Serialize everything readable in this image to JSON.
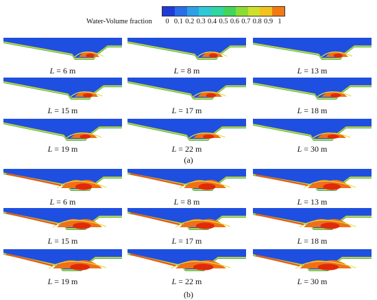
{
  "legend": {
    "title": "Water-Volume fraction",
    "ticks": [
      "0",
      "0.1",
      "0.2",
      "0.3",
      "0.4",
      "0.5",
      "0.6",
      "0.7",
      "0.8",
      "0.9",
      "1"
    ],
    "colors": [
      "#1f3bd6",
      "#2a6ee8",
      "#2ea0e8",
      "#2ec8d8",
      "#2ed6a0",
      "#3fd65a",
      "#8bdc32",
      "#cfe02a",
      "#f2c21e",
      "#f27a12",
      "#e62a0a"
    ]
  },
  "groups": [
    {
      "label": "(a)",
      "panels": [
        {
          "L": "L",
          "eq": " = 6 m"
        },
        {
          "L": "L",
          "eq": " = 8 m"
        },
        {
          "L": "L",
          "eq": " = 13 m"
        },
        {
          "L": "L",
          "eq": " = 15 m"
        },
        {
          "L": "L",
          "eq": " = 17 m"
        },
        {
          "L": "L",
          "eq": " = 18 m"
        },
        {
          "L": "L",
          "eq": " = 19 m"
        },
        {
          "L": "L",
          "eq": " = 22 m"
        },
        {
          "L": "L",
          "eq": " = 30 m"
        }
      ]
    },
    {
      "label": "(b)",
      "panels": [
        {
          "L": "L",
          "eq": " = 6 m"
        },
        {
          "L": "L",
          "eq": " = 8 m"
        },
        {
          "L": "L",
          "eq": " = 13 m"
        },
        {
          "L": "L",
          "eq": " = 15 m"
        },
        {
          "L": "L",
          "eq": " = 17 m"
        },
        {
          "L": "L",
          "eq": " = 18 m"
        },
        {
          "L": "L",
          "eq": " = 19 m"
        },
        {
          "L": "L",
          "eq": " = 22 m"
        },
        {
          "L": "L",
          "eq": " = 30 m"
        }
      ]
    }
  ]
}
